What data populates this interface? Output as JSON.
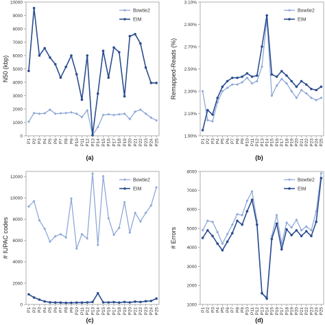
{
  "chart_data": [
    {
      "type": "line",
      "panel_label": "(a)",
      "ylabel": "N50 (kbp)",
      "xlabel": "",
      "ylim": [
        0,
        10000
      ],
      "yticks": [
        "0",
        "1000",
        "2000",
        "3000",
        "4000",
        "5000",
        "6000",
        "7000",
        "8000",
        "9000",
        "10000"
      ],
      "ytick_values": [
        0,
        1000,
        2000,
        3000,
        4000,
        5000,
        6000,
        7000,
        8000,
        9000,
        10000
      ],
      "categories": [
        "P1",
        "P2",
        "P3",
        "P4",
        "P5",
        "P6",
        "P7",
        "P8",
        "P9",
        "P10",
        "P11",
        "P12",
        "P13",
        "P14",
        "P15",
        "P16",
        "P17",
        "P18",
        "P19",
        "P20",
        "P21",
        "P22",
        "P23",
        "P24",
        "P25"
      ],
      "legend_position": "top-right",
      "series": [
        {
          "name": "Bowtie2",
          "color": "#8ea8d8",
          "marker": "diamond",
          "values": [
            1050,
            1700,
            1650,
            1680,
            1950,
            1650,
            1680,
            1700,
            1750,
            1650,
            1400,
            1900,
            50,
            650,
            1550,
            1600,
            1550,
            1600,
            1650,
            1250,
            1800,
            1950,
            1650,
            1350,
            1150
          ]
        },
        {
          "name": "EIM",
          "color": "#2a4d8f",
          "marker": "circle",
          "values": [
            4850,
            9550,
            6000,
            6550,
            5850,
            5350,
            4350,
            5150,
            6000,
            4600,
            2700,
            6000,
            50,
            3150,
            6350,
            4350,
            6600,
            6250,
            2950,
            7450,
            7600,
            6900,
            5100,
            3950,
            3950
          ]
        }
      ]
    },
    {
      "type": "line",
      "panel_label": "(b)",
      "ylabel": "Remapped-Reads (%)",
      "xlabel": "",
      "ylim": [
        1.9,
        3.1
      ],
      "yticks": [
        "1.90%",
        "2.10%",
        "2.30%",
        "2.50%",
        "2.70%",
        "2.90%",
        "3.10%"
      ],
      "ytick_values": [
        1.9,
        2.1,
        2.3,
        2.5,
        2.7,
        2.9,
        3.1
      ],
      "categories": [
        "P1",
        "P2",
        "P3",
        "P4",
        "P5",
        "P6",
        "P7",
        "P8",
        "P9",
        "P10",
        "P11",
        "P12",
        "P13",
        "P14",
        "P15",
        "P16",
        "P17",
        "P18",
        "P19",
        "P20",
        "P21",
        "P22",
        "P23",
        "P24",
        "P25"
      ],
      "legend_position": "top-right",
      "series": [
        {
          "name": "Bowtie2",
          "color": "#8ea8d8",
          "marker": "diamond",
          "values": [
            2.3,
            2.04,
            2.03,
            2.2,
            2.3,
            2.33,
            2.36,
            2.36,
            2.38,
            2.42,
            2.37,
            2.39,
            2.52,
            2.95,
            2.26,
            2.35,
            2.41,
            2.37,
            2.3,
            2.24,
            2.31,
            2.28,
            2.24,
            2.22,
            2.24
          ]
        },
        {
          "name": "EIM",
          "color": "#2a4d8f",
          "marker": "circle",
          "values": [
            1.95,
            2.13,
            2.09,
            2.24,
            2.34,
            2.39,
            2.42,
            2.42,
            2.43,
            2.46,
            2.43,
            2.44,
            2.7,
            2.98,
            2.45,
            2.43,
            2.48,
            2.44,
            2.39,
            2.34,
            2.39,
            2.36,
            2.32,
            2.31,
            2.34
          ]
        }
      ]
    },
    {
      "type": "line",
      "panel_label": "(c)",
      "ylabel": "# IUPAC codes",
      "xlabel": "",
      "ylim": [
        0,
        12500
      ],
      "yticks": [
        "0",
        "2000",
        "4000",
        "6000",
        "8000",
        "10000",
        "12000"
      ],
      "ytick_values": [
        0,
        2000,
        4000,
        6000,
        8000,
        10000,
        12000
      ],
      "categories": [
        "P1",
        "P2",
        "P3",
        "P4",
        "P5",
        "P6",
        "P7",
        "P8",
        "P9",
        "P10",
        "P11",
        "P12",
        "P13",
        "P14",
        "P15",
        "P16",
        "P17",
        "P18",
        "P19",
        "P20",
        "P21",
        "P22",
        "P23",
        "P24",
        "P25"
      ],
      "legend_position": "top-right",
      "series": [
        {
          "name": "Bowtie2",
          "color": "#8ea8d8",
          "marker": "diamond",
          "values": [
            9200,
            9700,
            7900,
            7100,
            5900,
            6400,
            6600,
            6300,
            9950,
            5250,
            6600,
            6200,
            12300,
            5600,
            12050,
            8100,
            6550,
            7200,
            9600,
            6750,
            8600,
            7800,
            8600,
            9300,
            11000
          ]
        },
        {
          "name": "EIM",
          "color": "#2a4d8f",
          "marker": "circle",
          "values": [
            950,
            650,
            450,
            280,
            200,
            180,
            170,
            150,
            160,
            170,
            170,
            190,
            230,
            1050,
            200,
            190,
            220,
            170,
            230,
            190,
            260,
            230,
            300,
            330,
            550
          ]
        }
      ]
    },
    {
      "type": "line",
      "panel_label": "(d)",
      "ylabel": "# Errors",
      "xlabel": "",
      "ylim": [
        1000,
        8000
      ],
      "yticks": [
        "1000",
        "2000",
        "3000",
        "4000",
        "5000",
        "6000",
        "7000",
        "8000"
      ],
      "ytick_values": [
        1000,
        2000,
        3000,
        4000,
        5000,
        6000,
        7000,
        8000
      ],
      "categories": [
        "P1",
        "P2",
        "P3",
        "P4",
        "P5",
        "P6",
        "P7",
        "P8",
        "P9",
        "P10",
        "P11",
        "P12",
        "P13",
        "P14",
        "P15",
        "P16",
        "P17",
        "P18",
        "P19",
        "P20",
        "P21",
        "P22",
        "P23",
        "P24",
        "P25"
      ],
      "legend_position": "top-right",
      "series": [
        {
          "name": "Bowtie2",
          "color": "#8ea8d8",
          "marker": "diamond",
          "values": [
            4900,
            5400,
            5350,
            4800,
            4200,
            4700,
            5200,
            5750,
            5700,
            6450,
            6950,
            5400,
            1550,
            1400,
            4600,
            5700,
            4200,
            5300,
            5050,
            5450,
            4900,
            5100,
            4900,
            5900,
            7900
          ]
        },
        {
          "name": "EIM",
          "color": "#2a4d8f",
          "marker": "circle",
          "values": [
            4500,
            4900,
            4600,
            4200,
            3850,
            4300,
            4750,
            5400,
            5200,
            5900,
            6500,
            5200,
            1600,
            1300,
            4450,
            5250,
            3900,
            4950,
            4650,
            4900,
            4600,
            4850,
            4600,
            5350,
            7650
          ]
        }
      ]
    }
  ]
}
